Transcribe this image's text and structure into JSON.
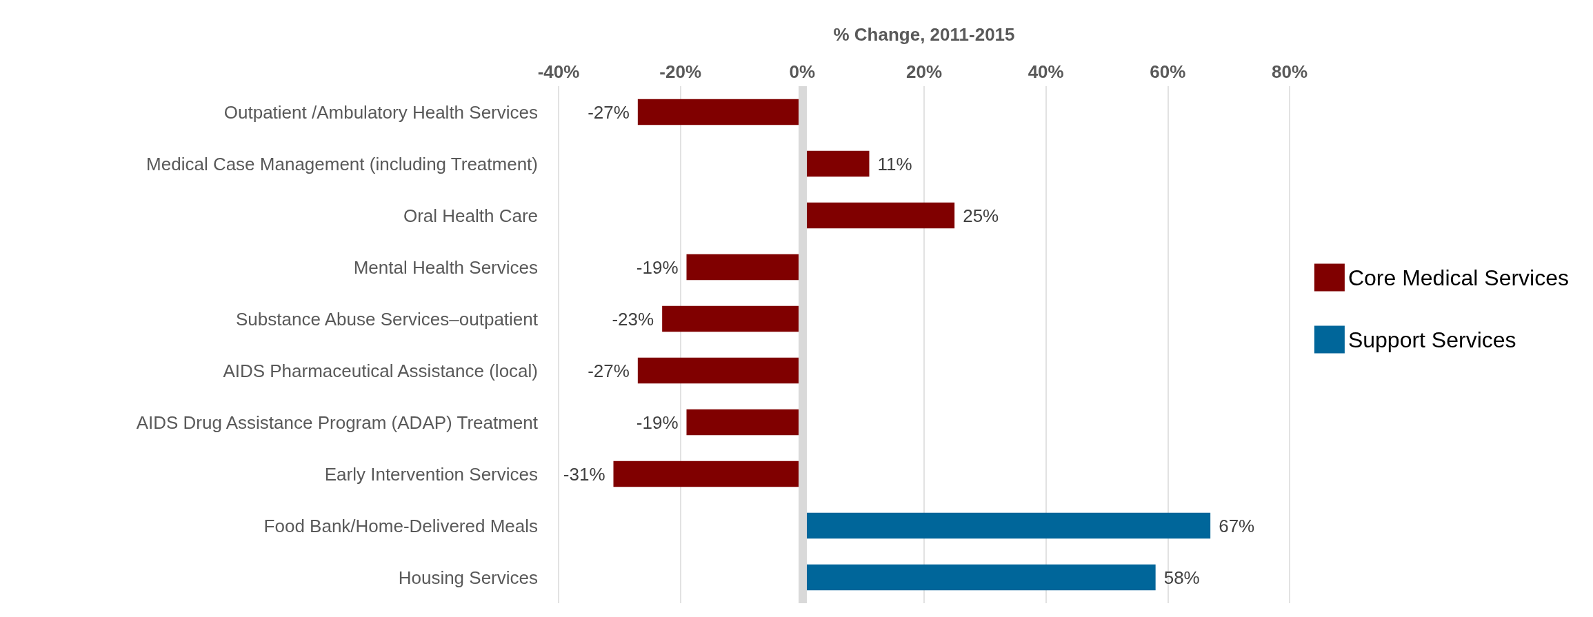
{
  "chart_data": {
    "type": "bar",
    "orientation": "horizontal",
    "xlabel": "% Change, 2011-2015",
    "categories": [
      "Outpatient /Ambulatory Health Services",
      "Medical Case Management (including Treatment)",
      "Oral Health Care",
      "Mental Health Services",
      "Substance Abuse Services–outpatient",
      "AIDS Pharmaceutical Assistance (local)",
      "AIDS Drug Assistance Program (ADAP) Treatment",
      "Early Intervention Services",
      "Food Bank/Home-Delivered Meals",
      "Housing Services"
    ],
    "series": [
      {
        "name": "Core Medical Services",
        "color": "#800000",
        "values": [
          -27,
          11,
          25,
          -19,
          -23,
          -27,
          -19,
          -31,
          null,
          null
        ],
        "value_labels": [
          "-27%",
          "11%",
          "25%",
          "-19%",
          "-23%",
          "-27%",
          "-19%",
          "-31%",
          null,
          null
        ]
      },
      {
        "name": "Support Services",
        "color": "#00669a",
        "values": [
          null,
          null,
          null,
          null,
          null,
          null,
          null,
          null,
          67,
          58
        ],
        "value_labels": [
          null,
          null,
          null,
          null,
          null,
          null,
          null,
          null,
          "67%",
          "58%"
        ]
      }
    ],
    "xlim": [
      -40,
      80
    ],
    "xticks": [
      {
        "value": -40,
        "label": "-40%"
      },
      {
        "value": -20,
        "label": "-20%"
      },
      {
        "value": 0,
        "label": "0%"
      },
      {
        "value": 20,
        "label": "20%"
      },
      {
        "value": 40,
        "label": "40%"
      },
      {
        "value": 60,
        "label": "60%"
      },
      {
        "value": 80,
        "label": "80%"
      }
    ],
    "ref_lines": [
      {
        "axis": "x",
        "value": 0,
        "color": "#d9d9d9"
      }
    ],
    "grid": "x",
    "legend": "right"
  }
}
